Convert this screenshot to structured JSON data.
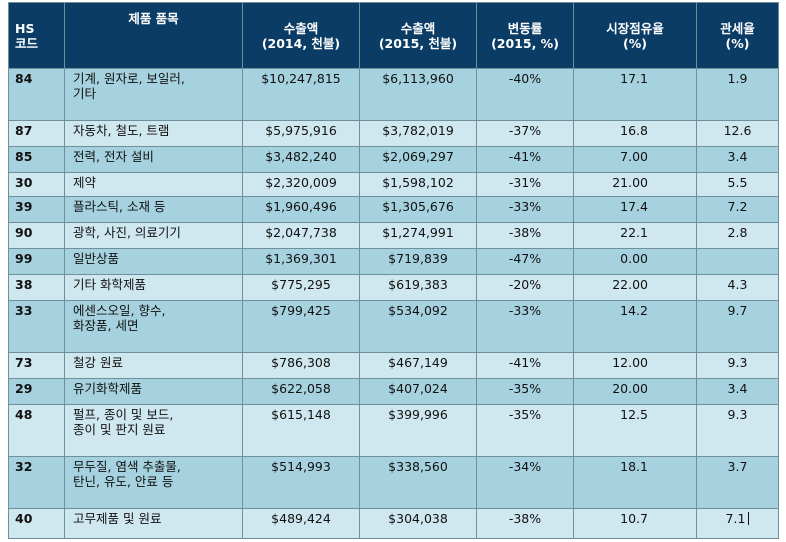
{
  "table": {
    "headers": [
      {
        "line1": "HS",
        "line2": "코드"
      },
      {
        "line1": "제품 품목",
        "line2": ""
      },
      {
        "line1": "수출액",
        "line2": "(2014, 천불)"
      },
      {
        "line1": "수출액",
        "line2": "(2015, 천불)"
      },
      {
        "line1": "변동률",
        "line2": "(2015, %)"
      },
      {
        "line1": "시장점유율",
        "line2": "(%)"
      },
      {
        "line1": "관세율",
        "line2": "(%)"
      }
    ],
    "rows": [
      {
        "hs": "84",
        "name_line1": "기계, 원자로, 보일러,",
        "name_line2": "기타",
        "export_2014": "$10,247,815",
        "export_2015": "$6,113,960",
        "change": "-40%",
        "share": "17.1",
        "tariff": "1.9"
      },
      {
        "hs": "87",
        "name_line1": "자동차, 철도, 트램",
        "name_line2": "",
        "export_2014": "$5,975,916",
        "export_2015": "$3,782,019",
        "change": "-37%",
        "share": "16.8",
        "tariff": "12.6"
      },
      {
        "hs": "85",
        "name_line1": "전력, 전자 설비",
        "name_line2": "",
        "export_2014": "$3,482,240",
        "export_2015": "$2,069,297",
        "change": "-41%",
        "share": "7.00",
        "tariff": "3.4"
      },
      {
        "hs": "30",
        "name_line1": "제약",
        "name_line2": "",
        "export_2014": "$2,320,009",
        "export_2015": "$1,598,102",
        "change": "-31%",
        "share": "21.00",
        "tariff": "5.5"
      },
      {
        "hs": "39",
        "name_line1": "플라스틱, 소재 등",
        "name_line2": "",
        "export_2014": "$1,960,496",
        "export_2015": "$1,305,676",
        "change": "-33%",
        "share": "17.4",
        "tariff": "7.2"
      },
      {
        "hs": "90",
        "name_line1": "광학, 사진, 의료기기",
        "name_line2": "",
        "export_2014": "$2,047,738",
        "export_2015": "$1,274,991",
        "change": "-38%",
        "share": "22.1",
        "tariff": "2.8"
      },
      {
        "hs": "99",
        "name_line1": "일반상품",
        "name_line2": "",
        "export_2014": "$1,369,301",
        "export_2015": "$719,839",
        "change": "-47%",
        "share": "0.00",
        "tariff": ""
      },
      {
        "hs": "38",
        "name_line1": "기타 화학제품",
        "name_line2": "",
        "export_2014": "$775,295",
        "export_2015": "$619,383",
        "change": "-20%",
        "share": "22.00",
        "tariff": "4.3"
      },
      {
        "hs": "33",
        "name_line1": "에센스오일, 향수,",
        "name_line2": "화장품, 세면",
        "export_2014": "$799,425",
        "export_2015": "$534,092",
        "change": "-33%",
        "share": "14.2",
        "tariff": "9.7"
      },
      {
        "hs": "73",
        "name_line1": "철강 원료",
        "name_line2": "",
        "export_2014": "$786,308",
        "export_2015": "$467,149",
        "change": "-41%",
        "share": "12.00",
        "tariff": "9.3"
      },
      {
        "hs": "29",
        "name_line1": "유기화학제품",
        "name_line2": "",
        "export_2014": "$622,058",
        "export_2015": "$407,024",
        "change": "-35%",
        "share": "20.00",
        "tariff": "3.4"
      },
      {
        "hs": "48",
        "name_line1": "펄프, 종이 및 보드,",
        "name_line2": "종이 및 판지 원료",
        "export_2014": "$615,148",
        "export_2015": "$399,996",
        "change": "-35%",
        "share": "12.5",
        "tariff": "9.3"
      },
      {
        "hs": "32",
        "name_line1": "무두질, 염색 추출물,",
        "name_line2": "탄닌, 유도, 안료 등",
        "export_2014": "$514,993",
        "export_2015": "$338,560",
        "change": "-34%",
        "share": "18.1",
        "tariff": "3.7"
      },
      {
        "hs": "40",
        "name_line1": "고무제품 및 원료",
        "name_line2": "",
        "export_2014": "$489,424",
        "export_2015": "$304,038",
        "change": "-38%",
        "share": "10.7",
        "tariff": "7.1"
      }
    ]
  }
}
